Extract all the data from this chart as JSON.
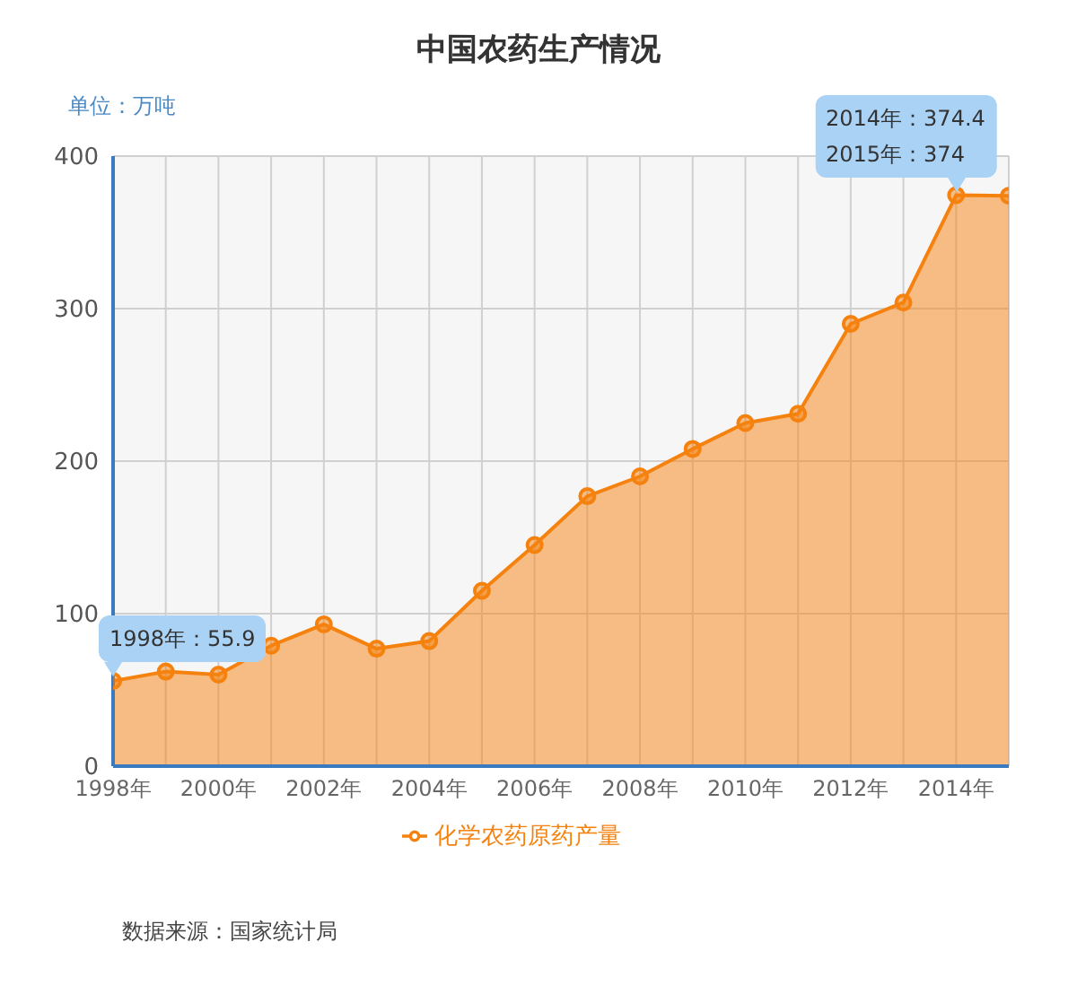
{
  "chart_data": {
    "type": "area",
    "title": "中国农药生产情况",
    "ylabel": "单位：万吨",
    "categories": [
      "1998年",
      null,
      "2000年",
      null,
      "2002年",
      null,
      "2004年",
      null,
      "2006年",
      null,
      "2008年",
      null,
      "2010年",
      null,
      "2012年",
      null,
      "2014年",
      null
    ],
    "series": [
      {
        "name": "化学农药原药产量",
        "color": "#f5820f",
        "values": [
          55.9,
          62,
          60,
          79,
          93,
          77,
          82,
          115,
          145,
          177,
          190,
          208,
          225,
          231,
          290,
          304,
          374.4,
          374
        ]
      }
    ],
    "ylim": [
      0,
      400
    ],
    "yticks": [
      0,
      100,
      200,
      300,
      400
    ],
    "grid": true,
    "legend": "bottom",
    "marker": "circle",
    "annotations": [
      {
        "text": "1998年：55.9",
        "x": "1998年",
        "y": 55.9
      },
      {
        "text": "2014年：374.4\n2015年：374",
        "x": "2014年",
        "y": 374.4
      },
      "数据来源：国家统计局"
    ]
  }
}
